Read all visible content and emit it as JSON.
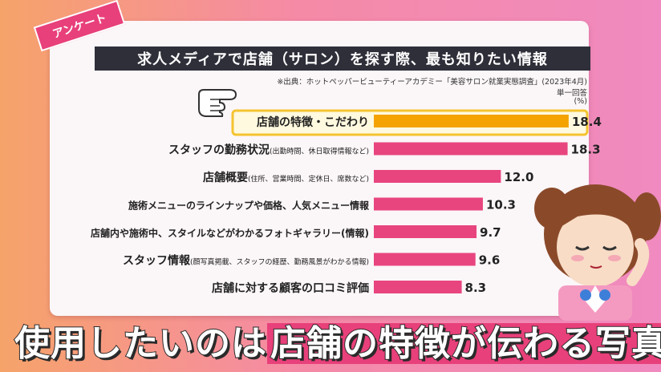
{
  "tag": "アンケート",
  "title": "求人メディアで店舗（サロン）を探す際、最も知りたい情報",
  "source": "※出典：ホットペッパービューティーアカデミー「美容サロン就業実態調査」(2023年4月)",
  "note_answer": "単一回答",
  "note_unit": "(%)",
  "caption_part1": "使用したいのは",
  "caption_part2": "店舗の特徴が伝わる写真",
  "colors": {
    "highlight_bar": "#f4a300",
    "bar": "#e8457f",
    "highlight_frame": "#f4c430"
  },
  "chart_data": {
    "type": "bar",
    "orientation": "horizontal",
    "title": "求人メディアで店舗（サロン）を探す際、最も知りたい情報",
    "unit": "(%)",
    "highlight_index": 0,
    "categories": [
      {
        "main": "店舗の特徴・こだわり",
        "sub": ""
      },
      {
        "main": "スタッフの勤務状況",
        "sub": "(出勤時間、休日取得情報など)"
      },
      {
        "main": "店舗概要",
        "sub": "(住所、営業時間、定休日、席数など)"
      },
      {
        "main": "施術メニューのラインナップや価格、人気メニュー情報",
        "sub": ""
      },
      {
        "main": "店舗内や施術中、スタイルなどがわかるフォトギャラリー(情報)",
        "sub": ""
      },
      {
        "main": "スタッフ情報",
        "sub": "(顔写真掲載、スタッフの経歴、勤務風景がわかる情報)"
      },
      {
        "main": "店舗に対する顧客の口コミ評価",
        "sub": ""
      }
    ],
    "values": [
      18.4,
      18.3,
      12.0,
      10.3,
      9.7,
      9.6,
      8.3
    ],
    "value_labels": [
      "18.4",
      "18.3",
      "12.0",
      "10.3",
      "9.7",
      "9.6",
      "8.3"
    ]
  }
}
